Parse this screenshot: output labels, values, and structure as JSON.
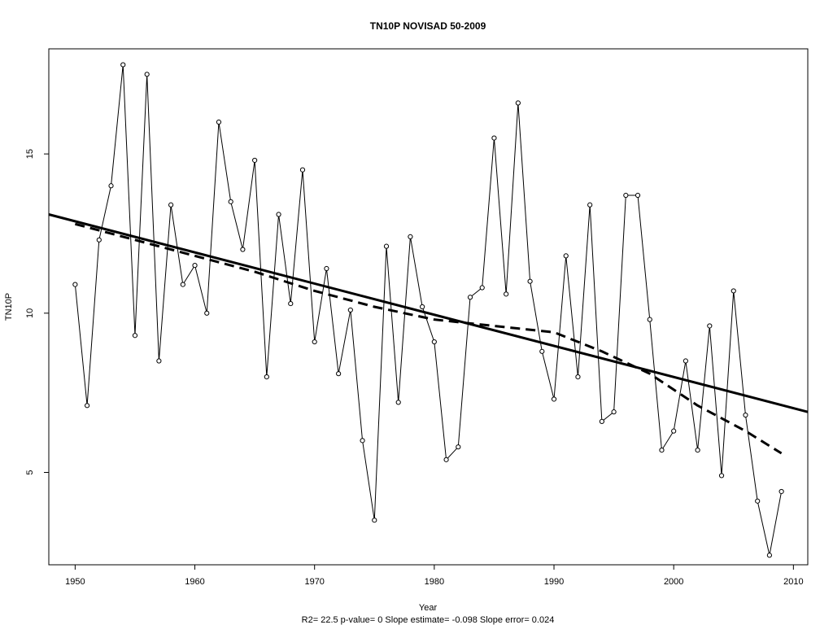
{
  "chart_data": {
    "type": "line",
    "title": "TN10P    NOVISAD 50-2009",
    "xlabel": "Year",
    "ylabel": "TN10P",
    "subtitle": "R2= 22.5  p-value= 0  Slope estimate= -0.098  Slope error= 0.024",
    "xlim": [
      1947.8,
      2011.2
    ],
    "ylim": [
      2.1,
      18.3
    ],
    "x_ticks": [
      1950,
      1960,
      1970,
      1980,
      1990,
      2000,
      2010
    ],
    "y_ticks": [
      5,
      10,
      15
    ],
    "grid": false,
    "series": [
      {
        "style": "line-with-open-circles",
        "color": "#000000",
        "x": [
          1950,
          1951,
          1952,
          1953,
          1954,
          1955,
          1956,
          1957,
          1958,
          1959,
          1960,
          1961,
          1962,
          1963,
          1964,
          1965,
          1966,
          1967,
          1968,
          1969,
          1970,
          1971,
          1972,
          1973,
          1974,
          1975,
          1976,
          1977,
          1978,
          1979,
          1980,
          1981,
          1982,
          1983,
          1984,
          1985,
          1986,
          1987,
          1988,
          1989,
          1990,
          1991,
          1992,
          1993,
          1994,
          1995,
          1996,
          1997,
          1998,
          1999,
          2000,
          2001,
          2002,
          2003,
          2004,
          2005,
          2006,
          2007,
          2008,
          2009
        ],
        "y": [
          10.9,
          7.1,
          12.3,
          14.0,
          17.8,
          9.3,
          17.5,
          8.5,
          13.4,
          10.9,
          11.5,
          10.0,
          16.0,
          13.5,
          12.0,
          14.8,
          8.0,
          13.1,
          10.3,
          14.5,
          9.1,
          11.4,
          8.1,
          10.1,
          6.0,
          3.5,
          12.1,
          7.2,
          12.4,
          10.2,
          9.1,
          5.4,
          5.8,
          10.5,
          10.8,
          15.5,
          10.6,
          16.6,
          11.0,
          8.8,
          7.3,
          11.8,
          8.0,
          13.4,
          6.6,
          6.9,
          13.7,
          13.7,
          9.8,
          5.7,
          6.3,
          8.5,
          5.7,
          9.6,
          4.9,
          10.7,
          6.8,
          4.1,
          2.4,
          4.4
        ]
      },
      {
        "style": "solid-trend",
        "color": "#000000",
        "x": [
          1947.8,
          2011.2
        ],
        "y": [
          13.1,
          6.9
        ]
      },
      {
        "style": "dashed-smooth",
        "color": "#000000",
        "x": [
          1950,
          1955,
          1960,
          1965,
          1970,
          1975,
          1980,
          1985,
          1990,
          1994,
          1998,
          2002,
          2006,
          2009
        ],
        "y": [
          12.8,
          12.3,
          11.8,
          11.3,
          10.7,
          10.2,
          9.8,
          9.6,
          9.4,
          8.8,
          8.1,
          7.1,
          6.3,
          5.6
        ]
      }
    ]
  }
}
